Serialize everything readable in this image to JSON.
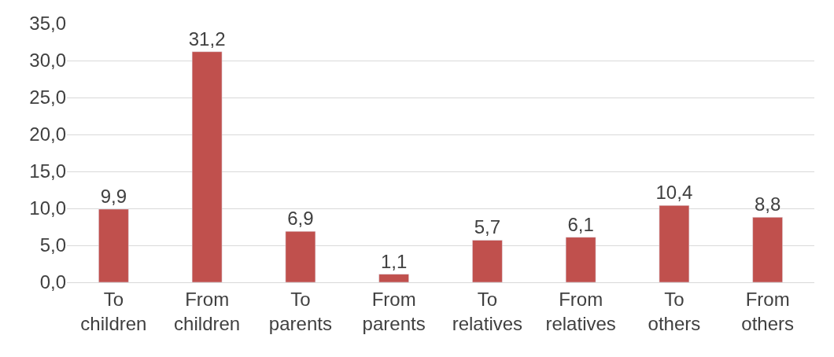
{
  "chart_data": {
    "type": "bar",
    "categories": [
      "To children",
      "From children",
      "To parents",
      "From parents",
      "To relatives",
      "From relatives",
      "To others",
      "From others"
    ],
    "values": [
      9.9,
      31.2,
      6.9,
      1.1,
      5.7,
      6.1,
      10.4,
      8.8
    ],
    "value_labels": [
      "9,9",
      "31,2",
      "6,9",
      "1,1",
      "5,7",
      "6,1",
      "10,4",
      "8,8"
    ],
    "color": "#c0504d",
    "ylim": [
      0,
      35
    ],
    "yticks": [
      {
        "value": 0,
        "label": "0,0"
      },
      {
        "value": 5,
        "label": "5,0"
      },
      {
        "value": 10,
        "label": "10,0"
      },
      {
        "value": 15,
        "label": "15,0"
      },
      {
        "value": 20,
        "label": "20,0"
      },
      {
        "value": 25,
        "label": "25,0"
      },
      {
        "value": 30,
        "label": "30,0"
      },
      {
        "value": 35,
        "label": "35,0"
      }
    ],
    "grid": "y"
  }
}
